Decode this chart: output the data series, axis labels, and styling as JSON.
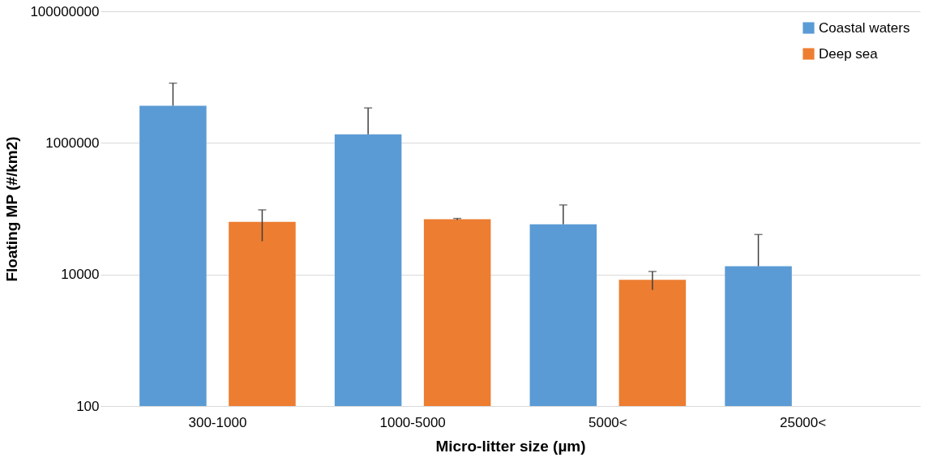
{
  "chart_data": {
    "type": "bar",
    "xlabel": "Micro-litter size (µm)",
    "ylabel": "Floating MP (#/km2)",
    "categories": [
      "300-1000",
      "1000-5000",
      "5000<",
      "25000<"
    ],
    "series": [
      {
        "name": "Coastal waters",
        "color": "#5b9bd5",
        "values": [
          3670000,
          1350000,
          58000,
          13300
        ],
        "errors": [
          [
            3670000,
            8100000
          ],
          [
            1350000,
            3400000
          ],
          [
            58000,
            114000
          ],
          [
            13300,
            40500
          ]
        ]
      },
      {
        "name": "Deep sea",
        "color": "#ed7d31",
        "values": [
          63000,
          69000,
          8300,
          null
        ],
        "errors": [
          [
            32000,
            96000
          ],
          [
            67000,
            71000
          ],
          [
            5800,
            11100
          ],
          null
        ]
      }
    ],
    "log": true,
    "ylim": [
      100,
      100000000
    ],
    "yticks": [
      100,
      10000,
      1000000,
      100000000
    ],
    "grid": "y",
    "legend": "top right"
  }
}
